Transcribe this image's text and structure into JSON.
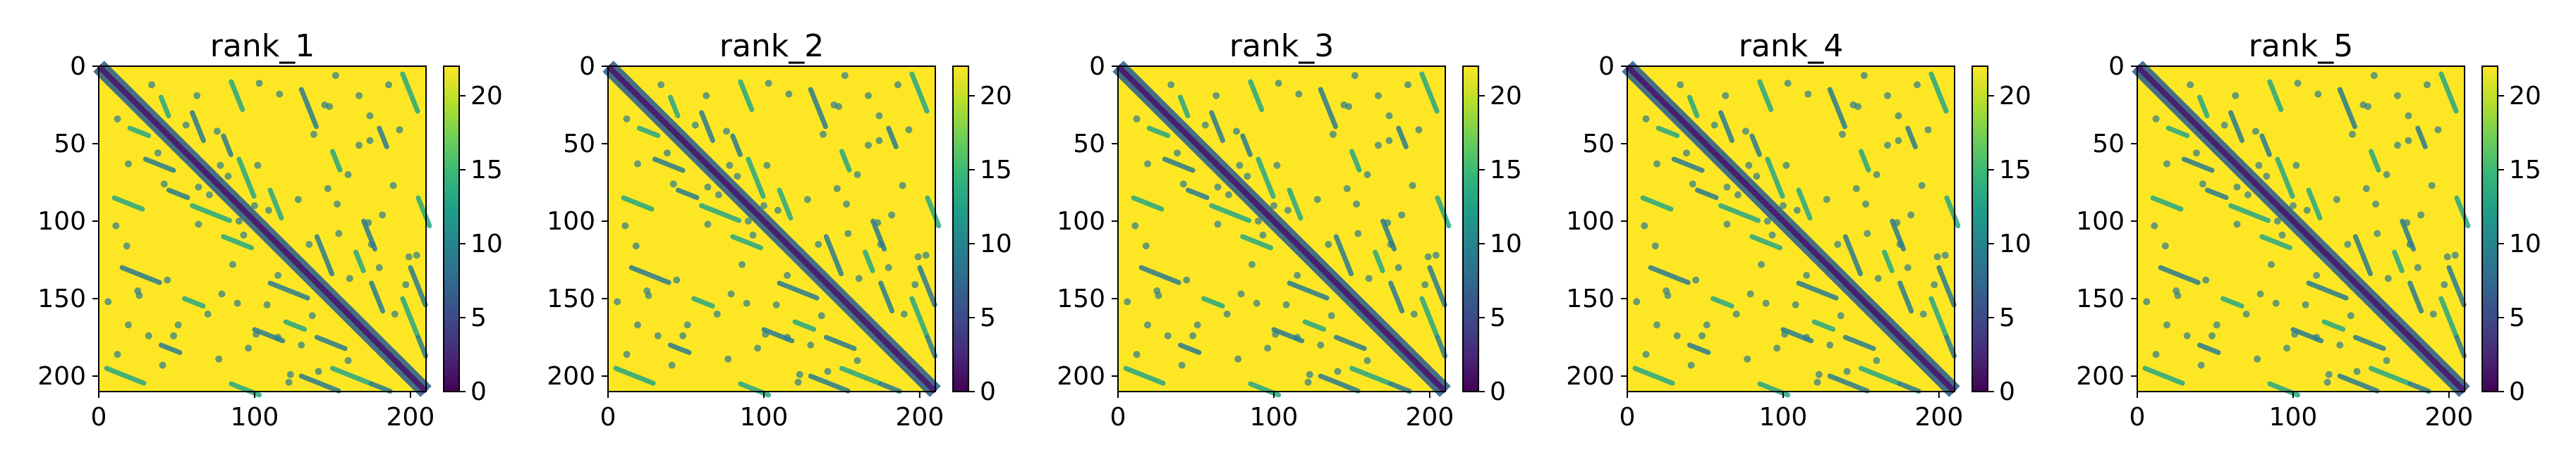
{
  "chart_data": [
    {
      "type": "heatmap",
      "title": "rank_1",
      "xlim": [
        0,
        210
      ],
      "ylim": [
        210,
        0
      ],
      "xticks": [
        0,
        100,
        200
      ],
      "yticks": [
        0,
        50,
        100,
        150,
        200
      ],
      "colorbar": {
        "min": 0,
        "max": 22,
        "ticks": [
          0,
          5,
          10,
          15,
          20
        ]
      },
      "colormap": "viridis",
      "near_value": 22,
      "diagonal_value": 2,
      "contact_band_value": 9
    },
    {
      "type": "heatmap",
      "title": "rank_2",
      "xlim": [
        0,
        210
      ],
      "ylim": [
        210,
        0
      ],
      "xticks": [
        0,
        100,
        200
      ],
      "yticks": [
        0,
        50,
        100,
        150,
        200
      ],
      "colorbar": {
        "min": 0,
        "max": 22,
        "ticks": [
          0,
          5,
          10,
          15,
          20
        ]
      },
      "colormap": "viridis",
      "near_value": 22,
      "diagonal_value": 2,
      "contact_band_value": 9
    },
    {
      "type": "heatmap",
      "title": "rank_3",
      "xlim": [
        0,
        210
      ],
      "ylim": [
        210,
        0
      ],
      "xticks": [
        0,
        100,
        200
      ],
      "yticks": [
        0,
        50,
        100,
        150,
        200
      ],
      "colorbar": {
        "min": 0,
        "max": 22,
        "ticks": [
          0,
          5,
          10,
          15,
          20
        ]
      },
      "colormap": "viridis",
      "near_value": 22,
      "diagonal_value": 2,
      "contact_band_value": 9
    },
    {
      "type": "heatmap",
      "title": "rank_4",
      "xlim": [
        0,
        210
      ],
      "ylim": [
        210,
        0
      ],
      "xticks": [
        0,
        100,
        200
      ],
      "yticks": [
        0,
        50,
        100,
        150,
        200
      ],
      "colorbar": {
        "min": 0,
        "max": 22,
        "ticks": [
          0,
          5,
          10,
          15,
          20
        ]
      },
      "colormap": "viridis",
      "near_value": 22,
      "diagonal_value": 2,
      "contact_band_value": 9
    },
    {
      "type": "heatmap",
      "title": "rank_5",
      "xlim": [
        0,
        210
      ],
      "ylim": [
        210,
        0
      ],
      "xticks": [
        0,
        100,
        200
      ],
      "yticks": [
        0,
        50,
        100,
        150,
        200
      ],
      "colorbar": {
        "min": 0,
        "max": 22,
        "ticks": [
          0,
          5,
          10,
          15,
          20
        ]
      },
      "colormap": "viridis",
      "near_value": 22,
      "diagonal_value": 2,
      "contact_band_value": 9
    }
  ],
  "colors": {
    "viridis_stops": [
      "#440154",
      "#482878",
      "#3e4989",
      "#31688e",
      "#26828e",
      "#1f9e89",
      "#35b779",
      "#6ece58",
      "#b5de2b",
      "#fde725"
    ],
    "axis_line": "#000000"
  }
}
